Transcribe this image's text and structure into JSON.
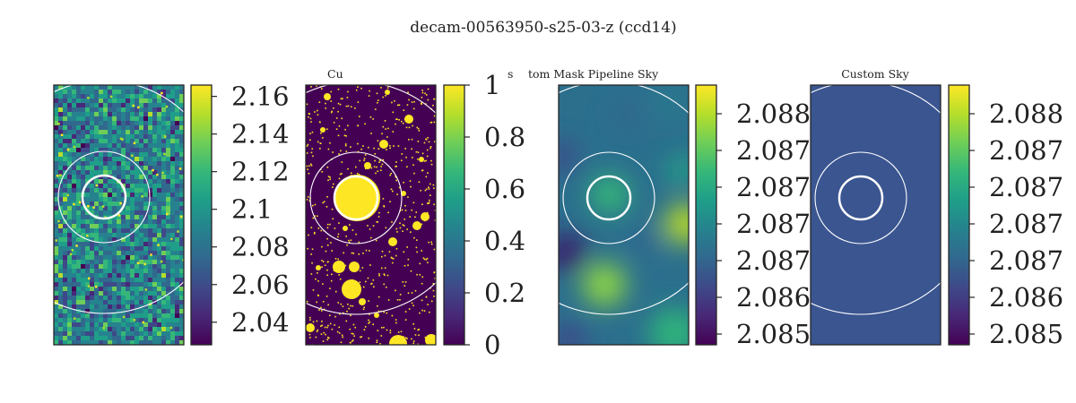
{
  "figure": {
    "title": "decam-00563950-s25-03-z (ccd14)"
  },
  "chart_data": [
    {
      "type": "heatmap",
      "title": "",
      "image": "noisy-sky-cutout",
      "colormap": "viridis",
      "colorbar": {
        "ticks": [
          "2.04",
          "2.06",
          "2.08",
          "2.1",
          "2.12",
          "2.14",
          "2.16"
        ],
        "range": [
          2.028,
          2.166
        ]
      },
      "circles": [
        "inner-aperture-thick",
        "annulus-inner",
        "annulus-outer"
      ]
    },
    {
      "type": "heatmap",
      "title": "Custom Mask",
      "title_fragments": [
        "Cu",
        "s",
        "tom Mask"
      ],
      "image": "binary-mask",
      "colormap": "viridis",
      "colorbar": {
        "ticks": [
          "0",
          "0.2",
          "0.4",
          "0.6",
          "0.8",
          "1"
        ],
        "range": [
          0,
          1
        ]
      },
      "circles": [
        "inner-aperture-thick",
        "annulus-inner",
        "annulus-outer"
      ]
    },
    {
      "type": "heatmap",
      "title": "Pipeline Sky",
      "image": "smooth-sky-model",
      "colormap": "viridis",
      "colorbar": {
        "ticks": [
          "2.085",
          "2.086",
          "2.087",
          "2.087",
          "2.087",
          "2.087",
          "2.088"
        ],
        "range": [
          2.0849,
          2.0881
        ]
      },
      "circles": [
        "inner-aperture-thick",
        "annulus-inner",
        "annulus-outer"
      ]
    },
    {
      "type": "heatmap",
      "title": "Custom Sky",
      "image": "constant-sky",
      "colormap": "viridis",
      "colorbar": {
        "ticks": [
          "2.085",
          "2.086",
          "2.087",
          "2.087",
          "2.087",
          "2.087",
          "2.088"
        ],
        "range": [
          2.0849,
          2.0881
        ]
      },
      "circles": [
        "inner-aperture-thick",
        "annulus-inner",
        "annulus-outer"
      ]
    }
  ],
  "colors": {
    "viridis": [
      "#440154",
      "#482878",
      "#3e4989",
      "#31688e",
      "#26828e",
      "#1f9e89",
      "#35b779",
      "#6ece58",
      "#b5de2b",
      "#fde725"
    ],
    "custom_sky_fill": "#3a5590",
    "circle": "#ffffff",
    "axes_edge": "#262626"
  }
}
